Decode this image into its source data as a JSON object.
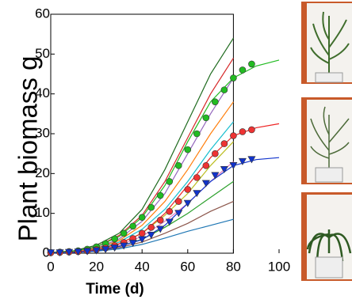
{
  "chart_data": {
    "type": "line",
    "x_label": "Time (d)",
    "y_label": "Plant biomass g",
    "xlim": [
      0,
      100
    ],
    "ylim": [
      0,
      60
    ],
    "xticks": [
      0,
      20,
      40,
      60,
      80,
      100
    ],
    "yticks": [
      0,
      10,
      20,
      30,
      40,
      50,
      60
    ],
    "series": [
      {
        "color": "#1f6b1f",
        "x": [
          0,
          10,
          20,
          30,
          40,
          50,
          60,
          70,
          80
        ],
        "values": [
          0.2,
          0.6,
          2,
          5,
          11,
          21,
          33,
          45,
          54
        ]
      },
      {
        "color": "#d62728",
        "x": [
          0,
          10,
          20,
          30,
          40,
          50,
          60,
          70,
          80
        ],
        "values": [
          0.2,
          0.5,
          1.6,
          4.5,
          9.5,
          18,
          29,
          40,
          49
        ]
      },
      {
        "color": "#9467bd",
        "x": [
          0,
          10,
          20,
          30,
          40,
          50,
          60,
          70,
          80
        ],
        "values": [
          0.1,
          0.4,
          1.3,
          3.6,
          8,
          15,
          25,
          35,
          44
        ]
      },
      {
        "color": "#ff7f0e",
        "x": [
          0,
          10,
          20,
          30,
          40,
          50,
          60,
          70,
          80
        ],
        "values": [
          0.1,
          0.4,
          1.2,
          3.2,
          7,
          13,
          21,
          30,
          38
        ]
      },
      {
        "color": "#17becf",
        "x": [
          0,
          10,
          20,
          30,
          40,
          50,
          60,
          70,
          80
        ],
        "values": [
          0.1,
          0.3,
          1,
          2.8,
          6,
          11,
          18,
          26,
          33
        ]
      },
      {
        "color": "#bcbd22",
        "x": [
          0,
          10,
          20,
          30,
          40,
          50,
          60,
          70,
          80
        ],
        "values": [
          0.1,
          0.3,
          0.9,
          2.4,
          5,
          9.5,
          15,
          22,
          28
        ]
      },
      {
        "color": "#e377c2",
        "x": [
          0,
          10,
          20,
          30,
          40,
          50,
          60,
          70,
          80
        ],
        "values": [
          0.1,
          0.3,
          0.8,
          2,
          4.2,
          8,
          12.5,
          18,
          23
        ]
      },
      {
        "color": "#2ca02c",
        "x": [
          0,
          10,
          20,
          30,
          40,
          50,
          60,
          70,
          80
        ],
        "values": [
          0.1,
          0.2,
          0.7,
          1.7,
          3.5,
          6.5,
          10,
          14,
          18
        ]
      },
      {
        "color": "#8c564b",
        "x": [
          0,
          10,
          20,
          30,
          40,
          50,
          60,
          70,
          80
        ],
        "values": [
          0.1,
          0.2,
          0.6,
          1.4,
          2.8,
          5,
          7.5,
          10.5,
          13
        ]
      },
      {
        "color": "#1f77b4",
        "x": [
          0,
          10,
          20,
          30,
          40,
          50,
          60,
          70,
          80
        ],
        "values": [
          0.1,
          0.2,
          0.5,
          1.1,
          2.2,
          3.8,
          5.5,
          7,
          8.5
        ]
      },
      {
        "color": "#22bb22",
        "x": [
          0,
          10,
          20,
          30,
          40,
          50,
          60,
          70,
          80,
          90,
          100
        ],
        "values": [
          0.2,
          0.5,
          1.6,
          4.2,
          9,
          17,
          28,
          38,
          44,
          47,
          48.5
        ]
      },
      {
        "color": "#ee2222",
        "x": [
          0,
          10,
          20,
          30,
          40,
          50,
          60,
          70,
          80,
          90,
          100
        ],
        "values": [
          0.1,
          0.3,
          0.9,
          2.4,
          5,
          10,
          17,
          24,
          29.5,
          31.5,
          32.5
        ]
      },
      {
        "color": "#1133cc",
        "x": [
          0,
          10,
          20,
          30,
          40,
          50,
          60,
          70,
          80,
          90,
          100
        ],
        "values": [
          0.1,
          0.2,
          0.6,
          1.7,
          3.4,
          7,
          12.5,
          18,
          22,
          23.5,
          24
        ]
      },
      {
        "color": "#22bb22",
        "marker": "circle",
        "x": [
          0,
          4,
          8,
          12,
          16,
          20,
          24,
          28,
          32,
          36,
          40,
          44,
          48,
          52,
          56,
          60,
          64,
          68,
          72,
          76,
          80,
          84,
          88
        ],
        "values": [
          0.2,
          0.3,
          0.4,
          0.6,
          1,
          1.6,
          2.4,
          3.6,
          5,
          6.8,
          9,
          11.5,
          14.5,
          18,
          22,
          26,
          30,
          34,
          38,
          41,
          44,
          46,
          47.5
        ]
      },
      {
        "color": "#ee3333",
        "marker": "circle",
        "x": [
          0,
          4,
          8,
          12,
          16,
          20,
          24,
          28,
          32,
          36,
          40,
          44,
          48,
          52,
          56,
          60,
          64,
          68,
          72,
          76,
          80,
          84,
          88
        ],
        "values": [
          0.1,
          0.2,
          0.3,
          0.4,
          0.6,
          0.9,
          1.3,
          1.9,
          2.7,
          3.7,
          5,
          6.5,
          8.3,
          10.5,
          13,
          16,
          19,
          22,
          25,
          27.5,
          29.5,
          30.5,
          31
        ]
      },
      {
        "color": "#1133cc",
        "marker": "triangle",
        "x": [
          0,
          4,
          8,
          12,
          16,
          20,
          24,
          28,
          32,
          36,
          40,
          44,
          48,
          52,
          56,
          60,
          64,
          68,
          72,
          76,
          80,
          84,
          88
        ],
        "values": [
          0.1,
          0.1,
          0.2,
          0.3,
          0.4,
          0.6,
          0.9,
          1.3,
          1.8,
          2.5,
          3.4,
          4.5,
          6,
          7.8,
          10,
          12.5,
          15,
          17.5,
          19.5,
          21,
          22,
          23,
          23.5
        ]
      }
    ]
  }
}
